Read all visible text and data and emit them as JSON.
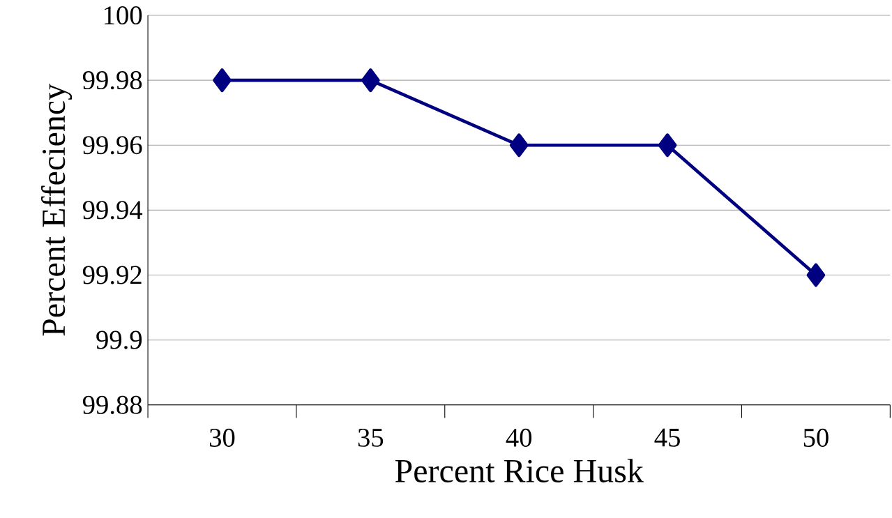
{
  "chart_data": {
    "type": "line",
    "xlabel": "Percent Rice Husk",
    "ylabel": "Percent Effeciency",
    "categories": [
      "30",
      "35",
      "40",
      "45",
      "50"
    ],
    "values": [
      99.98,
      99.98,
      99.96,
      99.96,
      99.92
    ],
    "color": "#000080",
    "ylim": [
      99.88,
      100
    ],
    "yticks": [
      99.88,
      99.9,
      99.92,
      99.94,
      99.96,
      99.98,
      100
    ],
    "grid": "y",
    "marker": "diamond",
    "line_style": "solid"
  }
}
